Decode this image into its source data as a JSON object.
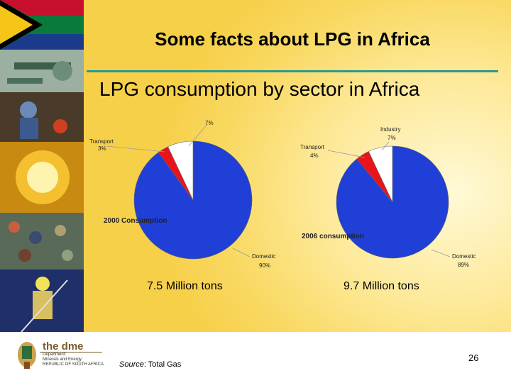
{
  "slide": {
    "title": "Some facts about LPG in Africa",
    "subtitle": "LPG consumption by sector in Africa",
    "source_label": "Source",
    "source_value": ": Total Gas",
    "page_number": "26",
    "logo": {
      "name": "the dme",
      "line1": "Department:",
      "line2": "Minerals and Energy",
      "line3": "REPUBLIC OF SOUTH AFRICA"
    }
  },
  "colors": {
    "domestic": "#1f3fd6",
    "transport": "#e8141a",
    "industry": "#ffffff",
    "rule": "#2a9a8f"
  },
  "chart_data": [
    {
      "type": "pie",
      "title": "2000 Consumption",
      "total_caption": "7.5 Million tons",
      "slices": [
        {
          "label": "Domestic",
          "value_label": "90%",
          "value": 90,
          "color": "#1f3fd6"
        },
        {
          "label": "Transport",
          "value_label": "3%",
          "value": 3,
          "color": "#e8141a"
        },
        {
          "label": "",
          "value_label": "7%",
          "value": 7,
          "color": "#ffffff"
        }
      ]
    },
    {
      "type": "pie",
      "title": "2006 consumption",
      "total_caption": "9.7 Million tons",
      "slices": [
        {
          "label": "Domestic",
          "value_label": "89%",
          "value": 89,
          "color": "#1f3fd6"
        },
        {
          "label": "Transport",
          "value_label": "4%",
          "value": 4,
          "color": "#e8141a"
        },
        {
          "label": "Industry",
          "value_label": "7%",
          "value": 7,
          "color": "#ffffff"
        }
      ]
    }
  ]
}
